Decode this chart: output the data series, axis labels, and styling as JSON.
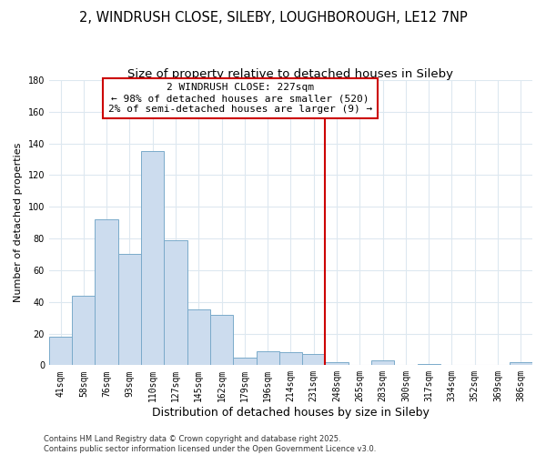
{
  "title": "2, WINDRUSH CLOSE, SILEBY, LOUGHBOROUGH, LE12 7NP",
  "subtitle": "Size of property relative to detached houses in Sileby",
  "xlabel": "Distribution of detached houses by size in Sileby",
  "ylabel": "Number of detached properties",
  "categories": [
    "41sqm",
    "58sqm",
    "76sqm",
    "93sqm",
    "110sqm",
    "127sqm",
    "145sqm",
    "162sqm",
    "179sqm",
    "196sqm",
    "214sqm",
    "231sqm",
    "248sqm",
    "265sqm",
    "283sqm",
    "300sqm",
    "317sqm",
    "334sqm",
    "352sqm",
    "369sqm",
    "386sqm"
  ],
  "values": [
    18,
    44,
    92,
    70,
    135,
    79,
    35,
    32,
    5,
    9,
    8,
    7,
    2,
    0,
    3,
    0,
    1,
    0,
    0,
    0,
    2
  ],
  "bar_color": "#ccdcee",
  "bar_edge_color": "#7aaaca",
  "vline_index": 11,
  "property_line_label": "2 WINDRUSH CLOSE: 227sqm",
  "annotation_line1": "← 98% of detached houses are smaller (520)",
  "annotation_line2": "2% of semi-detached houses are larger (9) →",
  "annotation_box_color": "#cc0000",
  "vline_color": "#cc0000",
  "ylim": [
    0,
    180
  ],
  "yticks": [
    0,
    20,
    40,
    60,
    80,
    100,
    120,
    140,
    160,
    180
  ],
  "background_color": "#ffffff",
  "grid_color": "#dde8f0",
  "footer": "Contains HM Land Registry data © Crown copyright and database right 2025.\nContains public sector information licensed under the Open Government Licence v3.0.",
  "title_fontsize": 10.5,
  "subtitle_fontsize": 9.5,
  "xlabel_fontsize": 9,
  "ylabel_fontsize": 8,
  "tick_fontsize": 7,
  "annotation_fontsize": 8,
  "footer_fontsize": 6
}
